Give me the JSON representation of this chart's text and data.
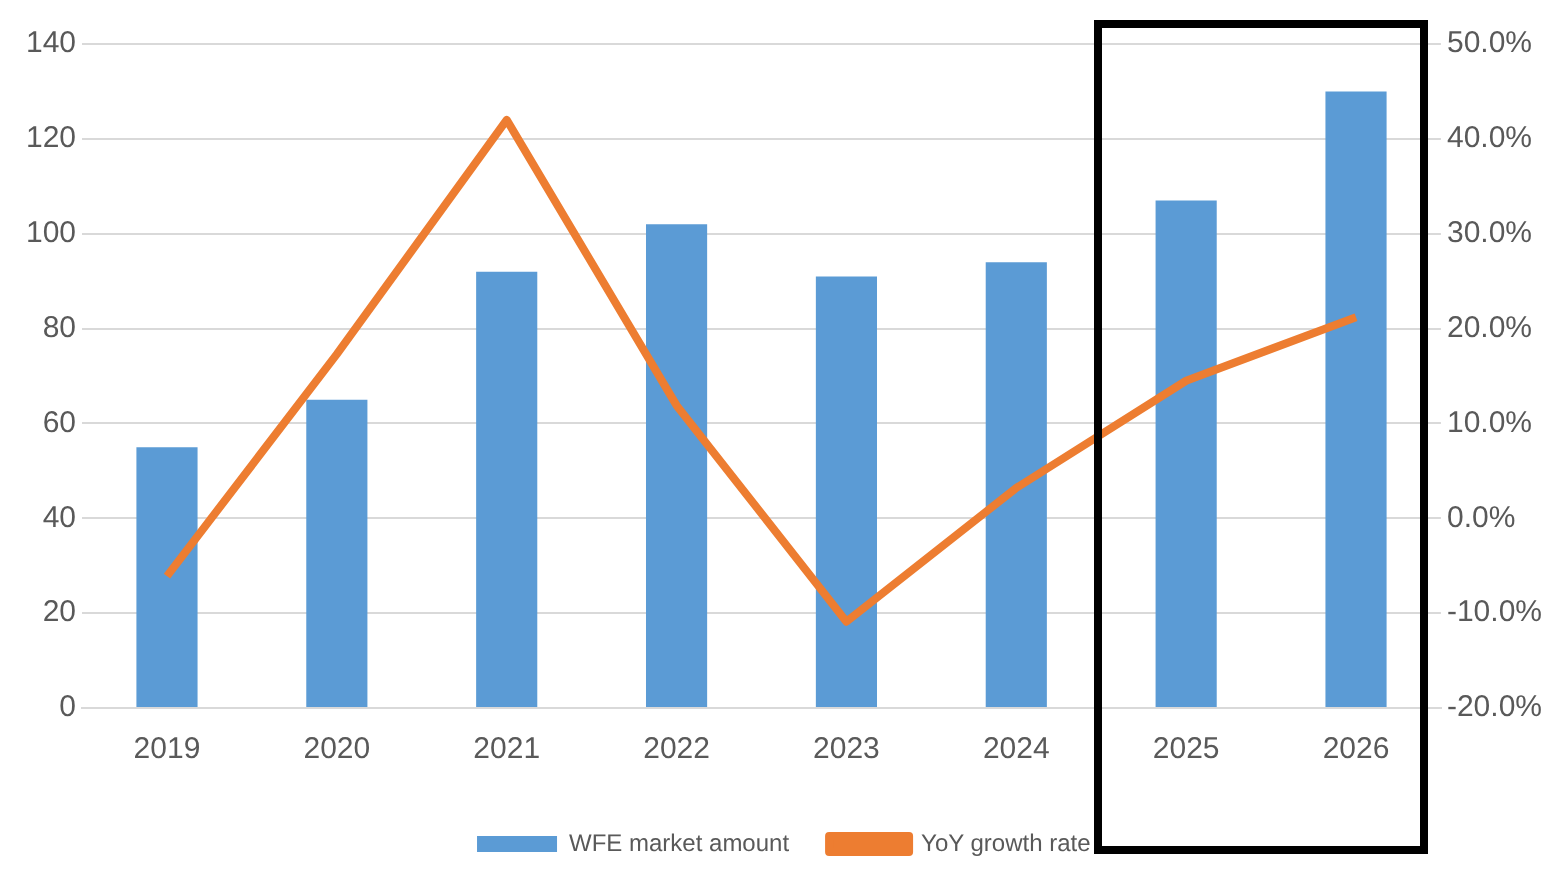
{
  "chart_data": {
    "type": "bar",
    "categories": [
      "2019",
      "2020",
      "2021",
      "2022",
      "2023",
      "2024",
      "2025",
      "2026"
    ],
    "series": [
      {
        "name": "WFE market amount",
        "color": "#5b9bd5",
        "values": [
          55,
          65,
          92,
          102,
          91,
          94,
          107,
          130
        ]
      },
      {
        "name": "YoY growth rate",
        "type": "line",
        "axis": "y2",
        "color": "#ed7d31",
        "values": [
          -6.1,
          17.3,
          42,
          11.9,
          -10.9,
          3.2,
          14.5,
          21.2
        ]
      }
    ],
    "ylim": [
      0,
      140
    ],
    "yticks": [
      0,
      20,
      40,
      60,
      80,
      100,
      120,
      140
    ],
    "y2lim": [
      -20,
      50
    ],
    "y2ticks": [
      {
        "value": -20,
        "label": "-20.0%"
      },
      {
        "value": -10,
        "label": "-10.0%"
      },
      {
        "value": 0,
        "label": "0.0%"
      },
      {
        "value": 10,
        "label": "10.0%"
      },
      {
        "value": 20,
        "label": "20.0%"
      },
      {
        "value": 30,
        "label": "30.0%"
      },
      {
        "value": 40,
        "label": "40.0%"
      },
      {
        "value": 50,
        "label": "50.0%"
      }
    ],
    "grid": "y",
    "legend": "bottom",
    "marker": "none",
    "line_style": "solid"
  }
}
